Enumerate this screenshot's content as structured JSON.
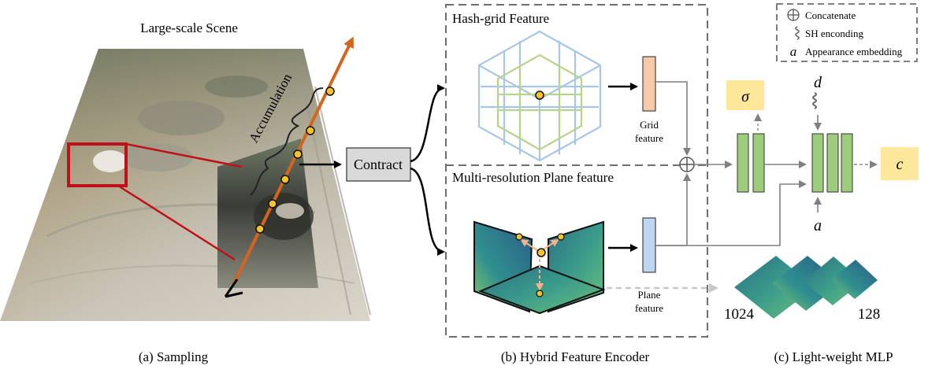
{
  "sampling": {
    "scene_title": "Large-scale Scene",
    "accumulation_label": "Accumulation",
    "caption": "(a) Sampling"
  },
  "contract_label": "Contract",
  "encoder": {
    "hash_title": "Hash-grid Feature",
    "grid_feature_label_1": "Grid",
    "grid_feature_label_2": "feature",
    "plane_title": "Multi-resolution Plane feature",
    "plane_feature_label_1": "Plane",
    "plane_feature_label_2": "feature",
    "caption": "(b) Hybrid Feature Encoder"
  },
  "mlp": {
    "sigma": "σ",
    "color": "c",
    "direction": "d",
    "appearance": "a",
    "res_high": "1024",
    "res_low": "128",
    "caption": "(c) Light-weight MLP"
  },
  "legend": {
    "concat_label": "Concatenate",
    "sh_label": "SH enconding",
    "appearance_symbol": "a",
    "appearance_label": "Appearance embedding"
  },
  "colors": {
    "ray": "#d4651f",
    "point": "#f5c330",
    "zoom_box": "#c0101a",
    "grid_blue": "#a8c6e8",
    "grid_green": "#b7d48c",
    "grid_feat": "#f6c9a8",
    "plane_feat": "#bcd7ef",
    "mlp_green": "#9ccc7c",
    "output_yellow": "#fde79a",
    "contract_box": "#d9d9d9"
  }
}
